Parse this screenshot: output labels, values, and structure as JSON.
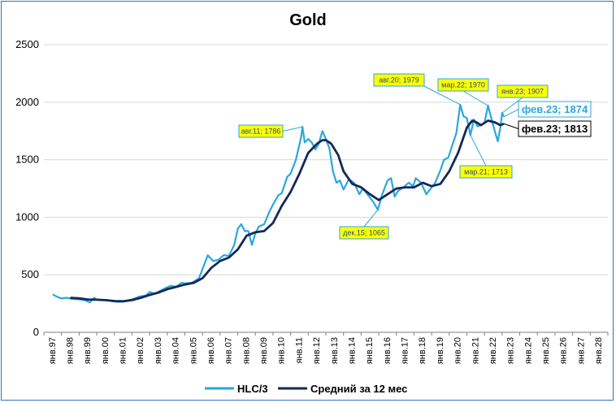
{
  "chart_data": {
    "type": "line",
    "title": "Gold",
    "ylim": [
      0,
      2500
    ],
    "yticks": [
      "0",
      "500",
      "1000",
      "1500",
      "2000",
      "2500"
    ],
    "xtick_labels": [
      "янв.97",
      "янв.98",
      "янв.99",
      "янв.00",
      "янв.01",
      "янв.02",
      "янв.03",
      "янв.04",
      "янв.05",
      "янв.06",
      "янв.07",
      "янв.08",
      "янв.09",
      "янв.10",
      "янв.11",
      "янв.12",
      "янв.13",
      "янв.14",
      "янв.15",
      "янв.16",
      "янв.17",
      "янв.18",
      "янв.19",
      "янв.20",
      "янв.21",
      "янв.22",
      "янв.23",
      "янв.24",
      "янв.25",
      "янв.26",
      "янв.27",
      "янв.28"
    ],
    "x_start": 1997,
    "series": [
      {
        "name": "HLC/3",
        "color": "#2aa7df",
        "points": [
          [
            1997.5,
            330
          ],
          [
            1997.8,
            305
          ],
          [
            1998.0,
            295
          ],
          [
            1998.3,
            300
          ],
          [
            1998.6,
            290
          ],
          [
            1999.0,
            287
          ],
          [
            1999.3,
            280
          ],
          [
            1999.6,
            260
          ],
          [
            1999.85,
            300
          ],
          [
            2000.0,
            285
          ],
          [
            2000.3,
            280
          ],
          [
            2000.6,
            278
          ],
          [
            2000.9,
            270
          ],
          [
            2001.2,
            265
          ],
          [
            2001.5,
            268
          ],
          [
            2001.8,
            280
          ],
          [
            2002.0,
            285
          ],
          [
            2002.4,
            310
          ],
          [
            2002.8,
            320
          ],
          [
            2003.0,
            350
          ],
          [
            2003.3,
            335
          ],
          [
            2003.6,
            360
          ],
          [
            2003.9,
            385
          ],
          [
            2004.2,
            405
          ],
          [
            2004.5,
            395
          ],
          [
            2004.8,
            430
          ],
          [
            2005.0,
            425
          ],
          [
            2005.4,
            430
          ],
          [
            2005.8,
            470
          ],
          [
            2006.0,
            550
          ],
          [
            2006.3,
            670
          ],
          [
            2006.6,
            620
          ],
          [
            2006.9,
            630
          ],
          [
            2007.2,
            670
          ],
          [
            2007.5,
            665
          ],
          [
            2007.8,
            760
          ],
          [
            2008.0,
            900
          ],
          [
            2008.2,
            940
          ],
          [
            2008.4,
            880
          ],
          [
            2008.6,
            880
          ],
          [
            2008.8,
            760
          ],
          [
            2009.0,
            860
          ],
          [
            2009.2,
            920
          ],
          [
            2009.5,
            940
          ],
          [
            2009.8,
            1050
          ],
          [
            2010.0,
            1110
          ],
          [
            2010.3,
            1190
          ],
          [
            2010.5,
            1210
          ],
          [
            2010.8,
            1350
          ],
          [
            2011.0,
            1380
          ],
          [
            2011.3,
            1500
          ],
          [
            2011.6,
            1700
          ],
          [
            2011.67,
            1786
          ],
          [
            2011.8,
            1650
          ],
          [
            2012.0,
            1680
          ],
          [
            2012.2,
            1650
          ],
          [
            2012.4,
            1590
          ],
          [
            2012.6,
            1640
          ],
          [
            2012.8,
            1750
          ],
          [
            2013.0,
            1680
          ],
          [
            2013.2,
            1600
          ],
          [
            2013.4,
            1400
          ],
          [
            2013.6,
            1300
          ],
          [
            2013.8,
            1320
          ],
          [
            2014.0,
            1240
          ],
          [
            2014.3,
            1330
          ],
          [
            2014.6,
            1300
          ],
          [
            2014.9,
            1200
          ],
          [
            2015.1,
            1250
          ],
          [
            2015.4,
            1190
          ],
          [
            2015.7,
            1130
          ],
          [
            2015.95,
            1065
          ],
          [
            2016.2,
            1200
          ],
          [
            2016.5,
            1320
          ],
          [
            2016.7,
            1340
          ],
          [
            2016.9,
            1180
          ],
          [
            2017.1,
            1230
          ],
          [
            2017.4,
            1260
          ],
          [
            2017.7,
            1300
          ],
          [
            2017.95,
            1270
          ],
          [
            2018.1,
            1340
          ],
          [
            2018.4,
            1300
          ],
          [
            2018.7,
            1200
          ],
          [
            2018.95,
            1250
          ],
          [
            2019.2,
            1300
          ],
          [
            2019.5,
            1410
          ],
          [
            2019.7,
            1500
          ],
          [
            2019.95,
            1520
          ],
          [
            2020.2,
            1640
          ],
          [
            2020.4,
            1730
          ],
          [
            2020.62,
            1979
          ],
          [
            2020.8,
            1880
          ],
          [
            2021.0,
            1860
          ],
          [
            2021.2,
            1713
          ],
          [
            2021.4,
            1850
          ],
          [
            2021.6,
            1790
          ],
          [
            2021.8,
            1800
          ],
          [
            2022.0,
            1820
          ],
          [
            2022.2,
            1970
          ],
          [
            2022.4,
            1850
          ],
          [
            2022.6,
            1740
          ],
          [
            2022.75,
            1660
          ],
          [
            2022.9,
            1780
          ],
          [
            2023.0,
            1907
          ],
          [
            2023.1,
            1874
          ]
        ]
      },
      {
        "name": "Средний за 12 мес",
        "color": "#14285a",
        "points": [
          [
            1998.5,
            300
          ],
          [
            1999.0,
            295
          ],
          [
            1999.5,
            285
          ],
          [
            2000.0,
            283
          ],
          [
            2000.5,
            280
          ],
          [
            2001.0,
            272
          ],
          [
            2001.5,
            270
          ],
          [
            2002.0,
            280
          ],
          [
            2002.5,
            300
          ],
          [
            2003.0,
            325
          ],
          [
            2003.5,
            345
          ],
          [
            2004.0,
            375
          ],
          [
            2004.5,
            395
          ],
          [
            2005.0,
            415
          ],
          [
            2005.5,
            430
          ],
          [
            2006.0,
            470
          ],
          [
            2006.5,
            560
          ],
          [
            2007.0,
            620
          ],
          [
            2007.5,
            650
          ],
          [
            2008.0,
            720
          ],
          [
            2008.5,
            840
          ],
          [
            2009.0,
            870
          ],
          [
            2009.5,
            880
          ],
          [
            2010.0,
            950
          ],
          [
            2010.5,
            1100
          ],
          [
            2011.0,
            1220
          ],
          [
            2011.5,
            1380
          ],
          [
            2012.0,
            1560
          ],
          [
            2012.5,
            1640
          ],
          [
            2012.8,
            1670
          ],
          [
            2013.0,
            1670
          ],
          [
            2013.3,
            1640
          ],
          [
            2013.7,
            1540
          ],
          [
            2014.0,
            1400
          ],
          [
            2014.5,
            1290
          ],
          [
            2015.0,
            1260
          ],
          [
            2015.5,
            1200
          ],
          [
            2016.0,
            1150
          ],
          [
            2016.5,
            1200
          ],
          [
            2017.0,
            1250
          ],
          [
            2017.5,
            1260
          ],
          [
            2018.0,
            1260
          ],
          [
            2018.5,
            1300
          ],
          [
            2019.0,
            1270
          ],
          [
            2019.5,
            1290
          ],
          [
            2020.0,
            1400
          ],
          [
            2020.5,
            1560
          ],
          [
            2021.0,
            1780
          ],
          [
            2021.3,
            1840
          ],
          [
            2021.5,
            1830
          ],
          [
            2021.8,
            1800
          ],
          [
            2022.2,
            1840
          ],
          [
            2022.6,
            1825
          ],
          [
            2022.9,
            1800
          ],
          [
            2023.1,
            1813
          ]
        ]
      }
    ],
    "annotations": [
      {
        "text": "авг.11; 1786",
        "x": 2011.67,
        "y": 1786
      },
      {
        "text": "авг.20; 1979",
        "x": 2020.62,
        "y": 1979
      },
      {
        "text": "мар.22; 1970",
        "x": 2022.2,
        "y": 1970
      },
      {
        "text": "янв.23; 1907",
        "x": 2023.0,
        "y": 1907
      },
      {
        "text": "фев.23; 1874",
        "x": 2023.1,
        "y": 1874
      },
      {
        "text": "фев.23; 1813",
        "x": 2023.1,
        "y": 1813
      },
      {
        "text": "мар.21; 1713",
        "x": 2021.2,
        "y": 1713
      },
      {
        "text": "дек.15; 1065",
        "x": 2015.95,
        "y": 1065
      }
    ]
  }
}
